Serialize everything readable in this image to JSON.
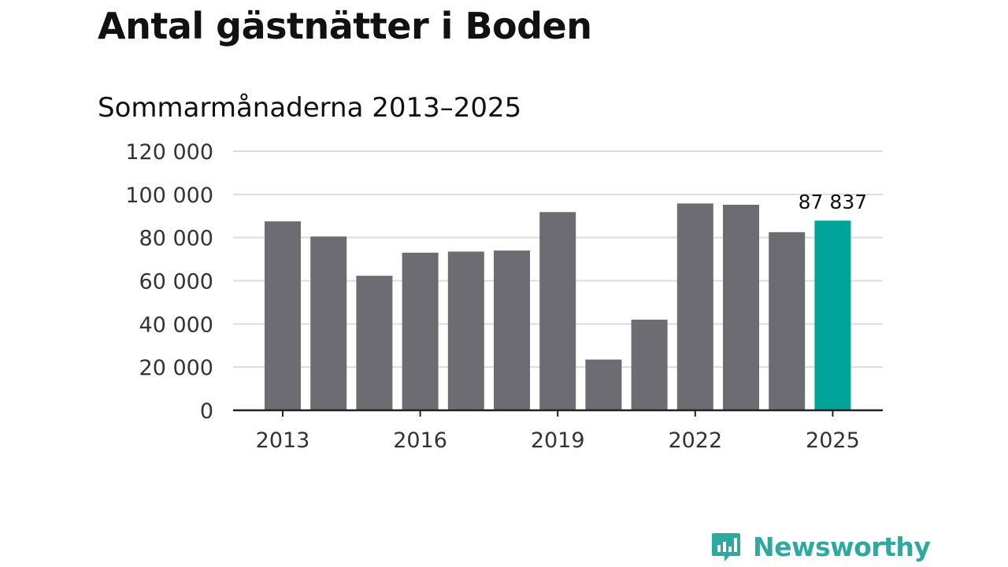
{
  "chart_data": {
    "type": "bar",
    "title": "Antal gästnätter i Boden",
    "subtitle": "Sommarmånaderna 2013–2025",
    "categories": [
      "2013",
      "2014",
      "2015",
      "2016",
      "2017",
      "2018",
      "2019",
      "2020",
      "2021",
      "2022",
      "2023",
      "2024",
      "2025"
    ],
    "values": [
      87500,
      80500,
      62300,
      73000,
      73500,
      74000,
      91800,
      23500,
      42000,
      95800,
      95200,
      82500,
      87837
    ],
    "x_tick_labels": [
      "2013",
      "2016",
      "2019",
      "2022",
      "2025"
    ],
    "y_ticks": [
      0,
      20000,
      40000,
      60000,
      80000,
      100000,
      120000
    ],
    "y_tick_labels": [
      "0",
      "20 000",
      "40 000",
      "60 000",
      "80 000",
      "100 000",
      "120 000"
    ],
    "ylim": [
      0,
      120000
    ],
    "grid": true,
    "highlight_index": 12,
    "highlight_label": "87 837",
    "colors": {
      "bar": "#6d6c72",
      "highlight": "#00a499",
      "grid": "#dddddd",
      "axis": "#222222",
      "tick_text": "#333333"
    }
  },
  "brand": {
    "name": "Newsworthy",
    "color": "#2ea9a0",
    "icon": "newsworthy-logo-icon"
  }
}
